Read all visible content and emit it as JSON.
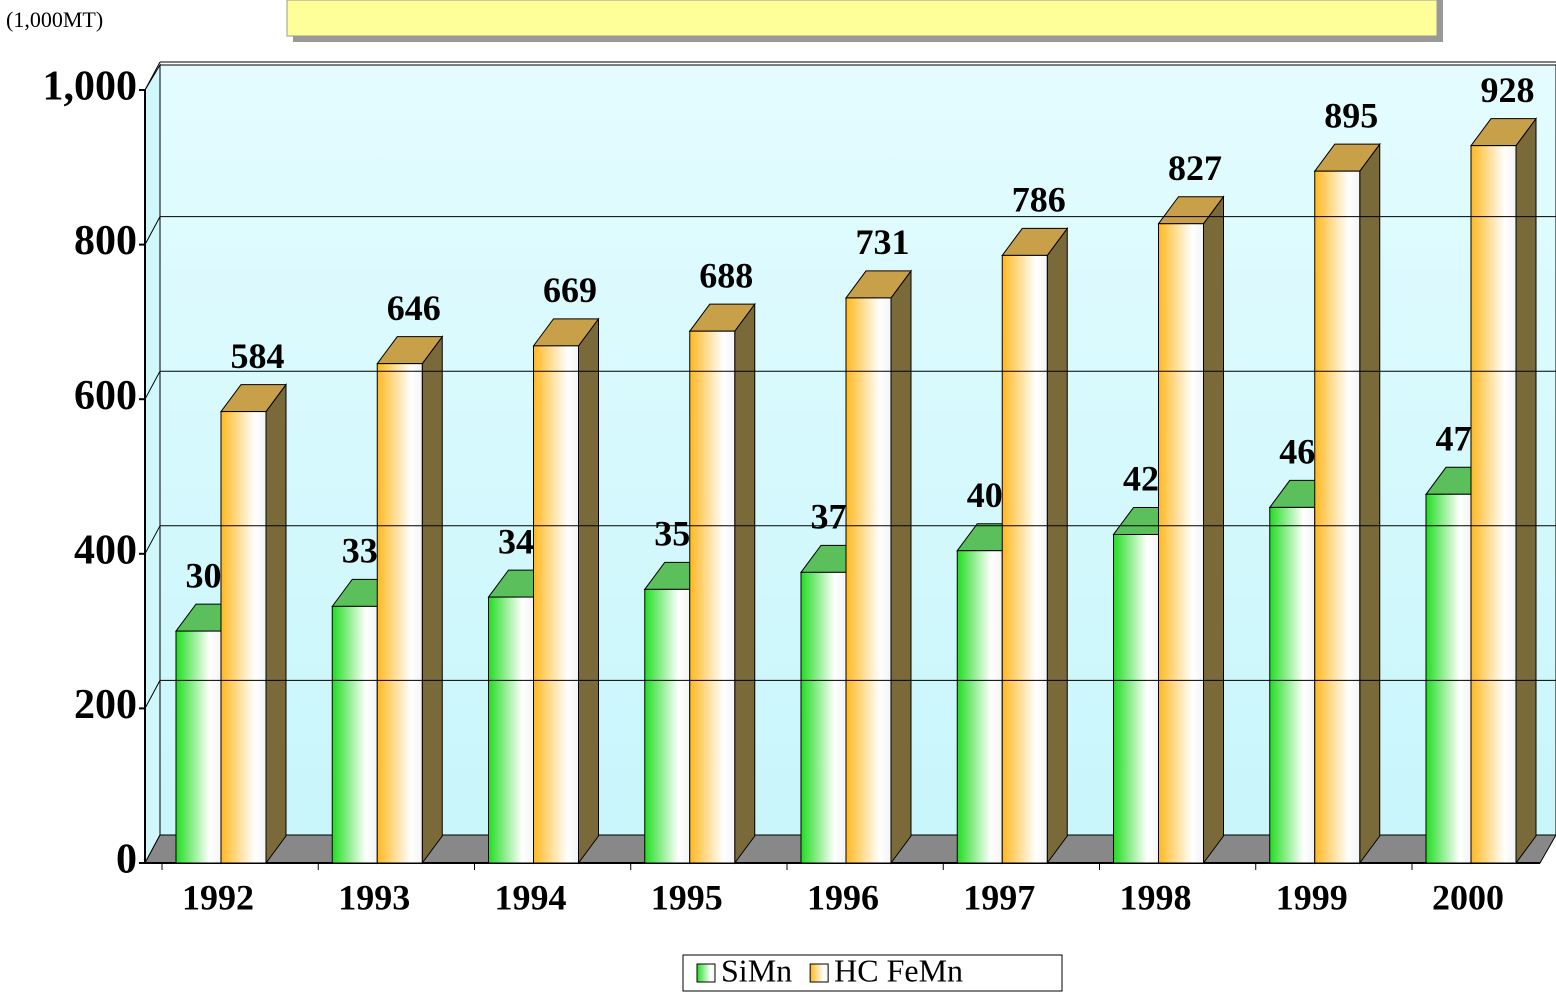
{
  "chart_data": {
    "type": "bar3d",
    "unit_label": "(1,000MT)",
    "categories": [
      "1992",
      "1993",
      "1994",
      "1995",
      "1996",
      "1997",
      "1998",
      "1999",
      "2000"
    ],
    "series": [
      {
        "name": "SiMn",
        "color": "#22dd22",
        "values": [
          300,
          332,
          344,
          354,
          376,
          404,
          425,
          460,
          477
        ]
      },
      {
        "name": "HC FeMn",
        "color": "#ffb820",
        "values": [
          584,
          646,
          669,
          688,
          731,
          786,
          827,
          895,
          928
        ]
      }
    ],
    "ylim": [
      0,
      1000
    ],
    "yticks": [
      0,
      200,
      400,
      600,
      800,
      {
        "value": 1000,
        "label": "1,000"
      }
    ],
    "grid": true,
    "legend": "bottom"
  }
}
